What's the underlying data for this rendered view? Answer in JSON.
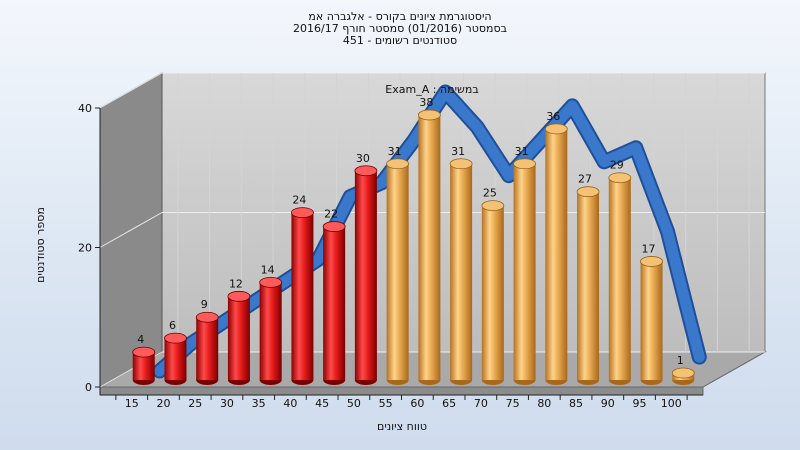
{
  "chart_data": {
    "type": "bar",
    "title_lines": [
      "היסטוגרמת ציונים בקורס - אלגברה אמ",
      "בסמסטר  (01/2016)  סמסטר חורף 2016/17",
      "451 - סטודנטים רשומים"
    ],
    "xlabel": "טווח ציונים",
    "ylabel": "מספר סטודנטים",
    "series_label": "Exam_A : במשימה",
    "categories": [
      "15",
      "20",
      "25",
      "30",
      "35",
      "40",
      "45",
      "50",
      "55",
      "60",
      "65",
      "70",
      "75",
      "80",
      "85",
      "90",
      "95",
      "100"
    ],
    "values": [
      4,
      6,
      9,
      12,
      14,
      24,
      22,
      30,
      31,
      38,
      31,
      25,
      31,
      36,
      27,
      29,
      17,
      1
    ],
    "y_ticks": [
      0,
      20,
      40
    ],
    "ylim": [
      0,
      40
    ],
    "colors": {
      "low": "#d81616",
      "high": "#e3a648",
      "band": "#3a78cc",
      "back_wall": "#c9c9c9",
      "side_wall": "#8a8a8a",
      "floor": "#a9a9a9"
    },
    "low_count": 8,
    "trend": [
      0,
      4,
      7,
      10,
      13,
      16,
      25,
      27,
      33,
      40,
      35,
      28,
      33,
      38,
      30,
      32,
      20,
      2
    ]
  }
}
